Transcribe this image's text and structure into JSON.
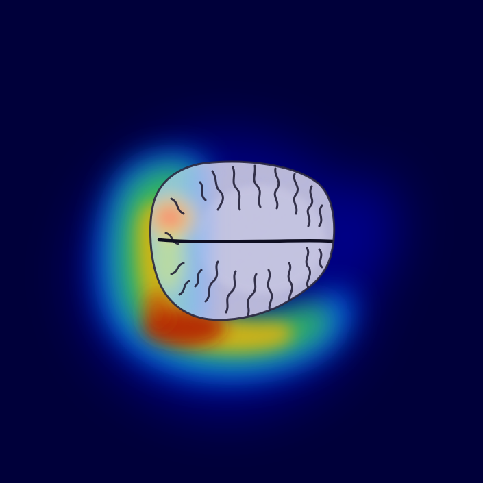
{
  "image": {
    "kind": "brain-mri-heatmap-overlay",
    "colors": {
      "background": "#00003a",
      "heatmap_low": "#000080",
      "heatmap_mid": "#00c0ff",
      "heatmap_green": "#3cc83c",
      "heatmap_yellow": "#ffe600",
      "heatmap_high": "#b40000",
      "brain_tissue": "#b9b8dd",
      "sulci": "#141426"
    }
  }
}
